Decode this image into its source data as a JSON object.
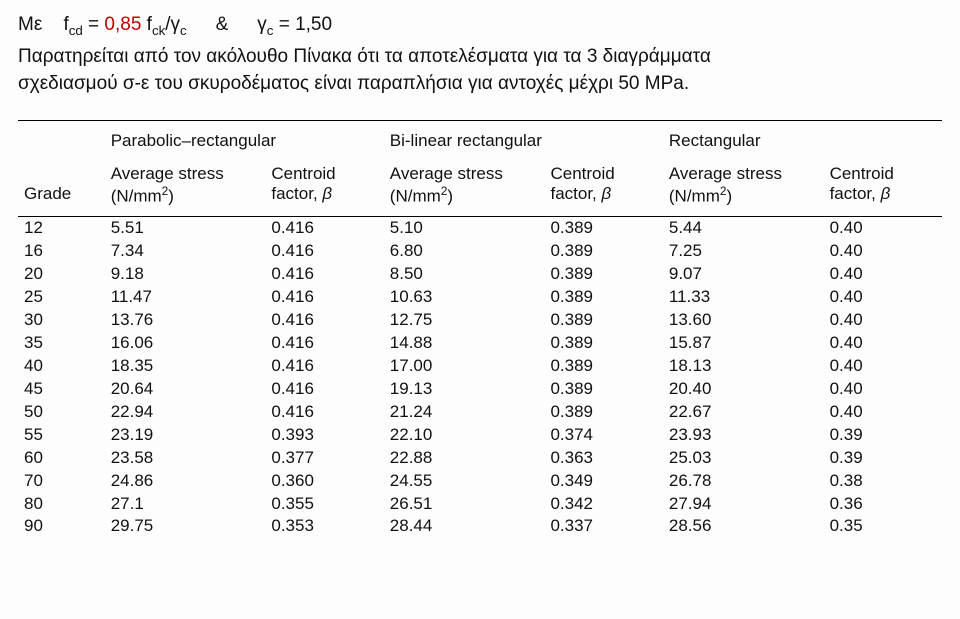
{
  "intro": {
    "prefix": "Με",
    "formula1_lhs_html": "f<span class='sub'>cd</span> = ",
    "formula1_val": "0,85",
    "formula1_rhs_html": " f<span class='sub'>ck</span>/γ<span class='sub'>c</span>",
    "amp": "&",
    "formula2_html": "γ<span class='sub'>c</span> = 1,50",
    "line2": "Παρατηρείται από τον ακόλουθο Πίνακα ότι τα αποτελέσματα για τα 3 διαγράμματα",
    "line3": "σχεδιασμού σ-ε του σκυροδέματος είναι παραπλήσια για αντοχές μέχρι 50 MPa."
  },
  "table": {
    "group_headers": [
      "",
      "Parabolic–rectangular",
      "Bi-linear rectangular",
      "Rectangular"
    ],
    "sub_headers": {
      "grade": "Grade",
      "avg": "Average stress",
      "avg_unit_html": "(N/mm<span class='sup2'>2</span>)",
      "cent": "Centroid",
      "cent2_html": "factor, <span class='beta'>β</span>"
    },
    "rows": [
      [
        "12",
        "5.51",
        "0.416",
        "5.10",
        "0.389",
        "5.44",
        "0.40"
      ],
      [
        "16",
        "7.34",
        "0.416",
        "6.80",
        "0.389",
        "7.25",
        "0.40"
      ],
      [
        "20",
        "9.18",
        "0.416",
        "8.50",
        "0.389",
        "9.07",
        "0.40"
      ],
      [
        "25",
        "11.47",
        "0.416",
        "10.63",
        "0.389",
        "11.33",
        "0.40"
      ],
      [
        "30",
        "13.76",
        "0.416",
        "12.75",
        "0.389",
        "13.60",
        "0.40"
      ],
      [
        "35",
        "16.06",
        "0.416",
        "14.88",
        "0.389",
        "15.87",
        "0.40"
      ],
      [
        "40",
        "18.35",
        "0.416",
        "17.00",
        "0.389",
        "18.13",
        "0.40"
      ],
      [
        "45",
        "20.64",
        "0.416",
        "19.13",
        "0.389",
        "20.40",
        "0.40"
      ],
      [
        "50",
        "22.94",
        "0.416",
        "21.24",
        "0.389",
        "22.67",
        "0.40"
      ],
      [
        "55",
        "23.19",
        "0.393",
        "22.10",
        "0.374",
        "23.93",
        "0.39"
      ],
      [
        "60",
        "23.58",
        "0.377",
        "22.88",
        "0.363",
        "25.03",
        "0.39"
      ],
      [
        "70",
        "24.86",
        "0.360",
        "24.55",
        "0.349",
        "26.78",
        "0.38"
      ],
      [
        "80",
        "27.1",
        "0.355",
        "26.51",
        "0.342",
        "27.94",
        "0.36"
      ],
      [
        "90",
        "29.75",
        "0.353",
        "28.44",
        "0.337",
        "28.56",
        "0.35"
      ]
    ]
  }
}
